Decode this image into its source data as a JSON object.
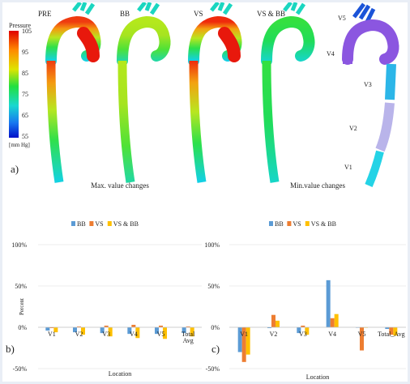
{
  "panel_a": {
    "label": "a)",
    "models": [
      "PRE",
      "BB",
      "VS",
      "VS & BB"
    ],
    "pressure_legend": {
      "title": "Pressure",
      "ticks": [
        "105",
        "95",
        "85",
        "75",
        "65",
        "55"
      ],
      "unit": "[mm Hg]"
    },
    "segment_labels": [
      "V5",
      "V4",
      "V3",
      "V2",
      "V1"
    ],
    "colors": {
      "high": "#e8180c",
      "upper": "#f3a10e",
      "mid": "#b6e61e",
      "green": "#20e23a",
      "cyan": "#1ed3dc",
      "v4_purple": "#8b56e0",
      "v3_cyan": "#2cb6e8",
      "v2_lavender": "#b9b4ea",
      "v1_cyan": "#24d3e6"
    }
  },
  "chart_data": [
    {
      "panel_label": "b)",
      "type": "bar",
      "title": "Max. value changes",
      "xlabel": "Location",
      "ylabel": "Percent",
      "categories": [
        "V1",
        "V2",
        "V3",
        "V4",
        "V5",
        "Total Avg"
      ],
      "yticks": [
        "100%",
        "50%",
        "0%",
        "-50%"
      ],
      "ylim": [
        -50,
        100
      ],
      "legend_position": "top-center",
      "series": [
        {
          "name": "BB",
          "color": "#5b9bd5",
          "values": [
            -4,
            -6,
            -7,
            -8,
            -8,
            -7
          ]
        },
        {
          "name": "VS",
          "color": "#ed7d31",
          "values": [
            -1,
            1,
            2,
            3,
            2,
            1
          ]
        },
        {
          "name": "VS & BB",
          "color": "#ffc000",
          "values": [
            -6,
            -9,
            -11,
            -13,
            -14,
            -11
          ]
        }
      ]
    },
    {
      "panel_label": "c)",
      "type": "bar",
      "title": "Min.value changes",
      "xlabel": "Location",
      "ylabel": "",
      "categories": [
        "V1",
        "V2",
        "V3",
        "V4",
        "V5",
        "Total_Avg"
      ],
      "yticks": [
        "100%",
        "50%",
        "0%",
        "-50%"
      ],
      "ylim": [
        -50,
        100
      ],
      "legend_position": "top-center",
      "series": [
        {
          "name": "BB",
          "color": "#5b9bd5",
          "values": [
            -30,
            -1,
            -7,
            57,
            0,
            -2
          ]
        },
        {
          "name": "VS",
          "color": "#ed7d31",
          "values": [
            -42,
            15,
            2,
            11,
            -28,
            -9
          ]
        },
        {
          "name": "VS & BB",
          "color": "#ffc000",
          "values": [
            -33,
            8,
            -9,
            16,
            0,
            -10
          ]
        }
      ]
    }
  ]
}
